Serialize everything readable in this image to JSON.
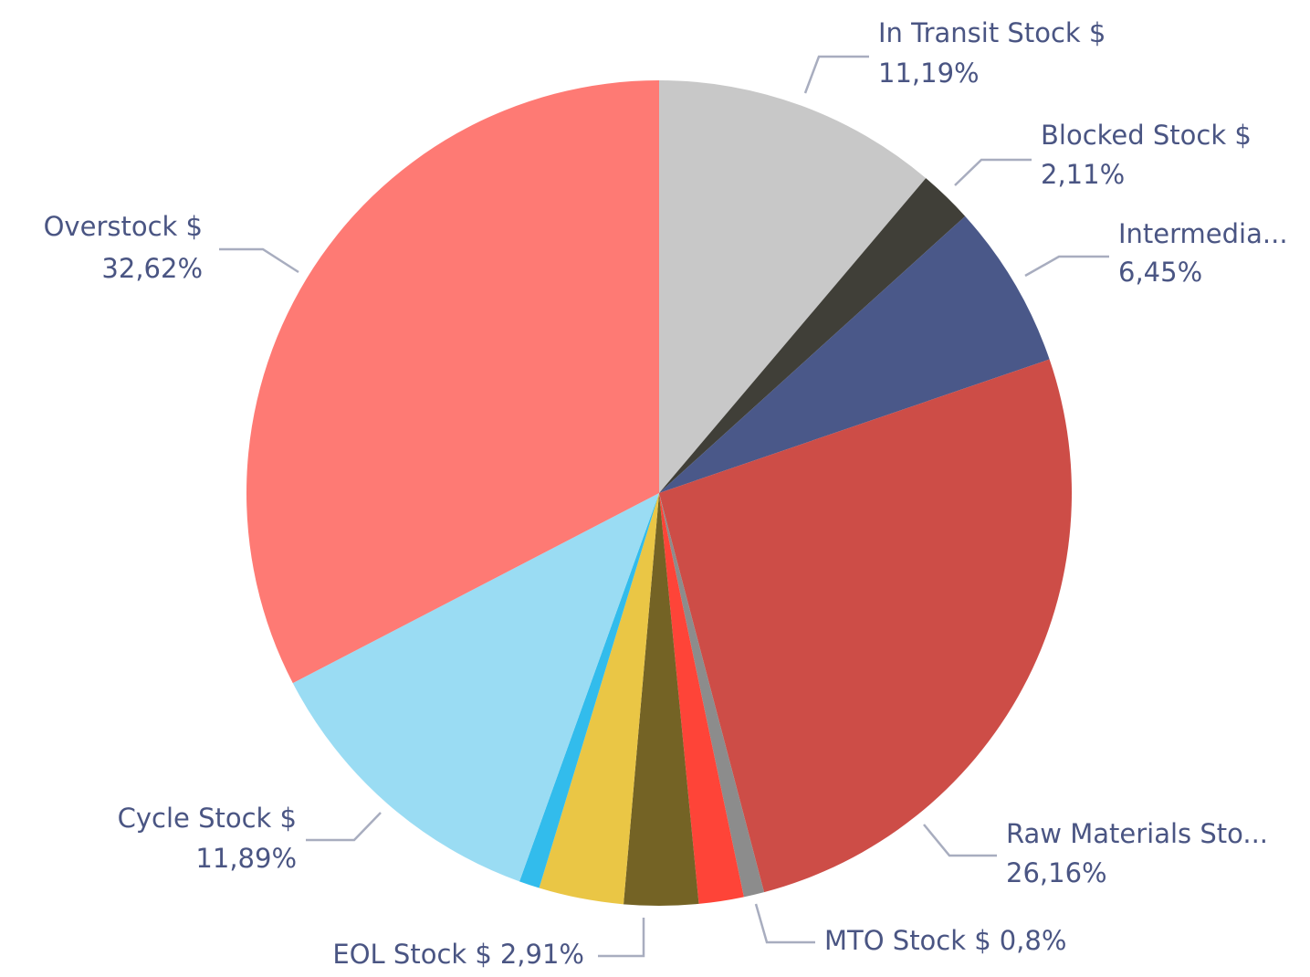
{
  "chart_data": {
    "type": "pie",
    "categories": [
      "In Transit Stock $",
      "Blocked Stock $",
      "Intermedia...",
      "Raw Materials Sto...",
      "MTO Stock $",
      null,
      "EOL Stock $",
      null,
      null,
      "Cycle Stock $",
      "Overstock $"
    ],
    "values": [
      11.19,
      2.11,
      6.45,
      26.16,
      0.8,
      1.76,
      2.91,
      3.32,
      0.8,
      11.89,
      32.62
    ],
    "value_labels": [
      "11,19%",
      "2,11%",
      "6,45%",
      "26,16%",
      "0,8%",
      null,
      "2,91%",
      null,
      null,
      "11,89%",
      "32,62%"
    ],
    "colors": [
      "#c8c8c8",
      "#403f38",
      "#4a5889",
      "#cd4d47",
      "#8c8c8c",
      "#fe4438",
      "#746325",
      "#eac645",
      "#32bcec",
      "#9adcf3",
      "#fe7a74"
    ]
  }
}
